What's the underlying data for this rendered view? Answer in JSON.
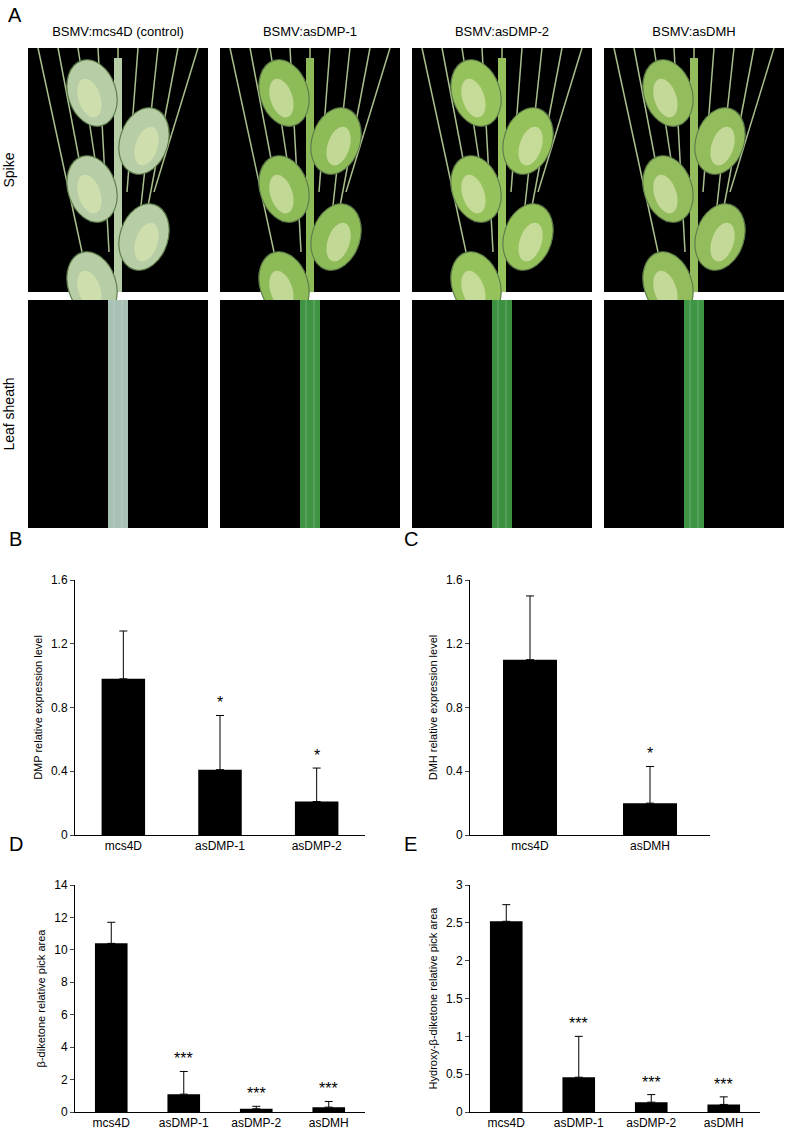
{
  "panel_a": {
    "panel": "A",
    "rows": [
      "Spike",
      "Leaf sheath"
    ],
    "columns": [
      {
        "label": "BSMV:mcs4D (control)",
        "spike_color": "#b7cda6",
        "sheath_color": "#a7c1b5"
      },
      {
        "label": "BSMV:asDMP-1",
        "spike_color": "#8dbb58",
        "sheath_color": "#3f9443"
      },
      {
        "label": "BSMV:asDMP-2",
        "spike_color": "#96c25c",
        "sheath_color": "#3c9140"
      },
      {
        "label": "BSMV:asDMH",
        "spike_color": "#93bd5c",
        "sheath_color": "#3e9544"
      }
    ]
  },
  "chart_data": [
    {
      "panel": "B",
      "type": "bar",
      "ylabel": "DMP relative expression level",
      "categories": [
        "mcs4D",
        "asDMP-1",
        "asDMP-2"
      ],
      "values": [
        0.98,
        0.41,
        0.21
      ],
      "errors": [
        0.3,
        0.34,
        0.21
      ],
      "significance": [
        null,
        "*",
        "*"
      ],
      "color": "#000000",
      "ylim": [
        0,
        1.6
      ],
      "yticks": [
        0,
        0.4,
        0.8,
        1.2,
        1.6
      ],
      "grid": false
    },
    {
      "panel": "C",
      "type": "bar",
      "ylabel": "DMH relative expression level",
      "categories": [
        "mcs4D",
        "asDMH"
      ],
      "values": [
        1.1,
        0.2
      ],
      "errors": [
        0.4,
        0.23
      ],
      "significance": [
        null,
        "*"
      ],
      "color": "#000000",
      "ylim": [
        0,
        1.6
      ],
      "yticks": [
        0,
        0.4,
        0.8,
        1.2,
        1.6
      ],
      "grid": false
    },
    {
      "panel": "D",
      "type": "bar",
      "ylabel": "β-diketone relative pick area",
      "categories": [
        "mcs4D",
        "asDMP-1",
        "asDMP-2",
        "asDMH"
      ],
      "values": [
        10.4,
        1.1,
        0.2,
        0.3
      ],
      "errors": [
        1.3,
        1.4,
        0.15,
        0.35
      ],
      "significance": [
        null,
        "***",
        "***",
        "***"
      ],
      "color": "#000000",
      "ylim": [
        0,
        14
      ],
      "yticks": [
        0,
        2,
        4,
        6,
        8,
        10,
        12,
        14
      ],
      "grid": false
    },
    {
      "panel": "E",
      "type": "bar",
      "ylabel": "Hydroxy-β-diketone relative pick area",
      "categories": [
        "mcs4D",
        "asDMP-1",
        "asDMP-2",
        "asDMH"
      ],
      "values": [
        2.52,
        0.46,
        0.13,
        0.1
      ],
      "errors": [
        0.22,
        0.54,
        0.1,
        0.1
      ],
      "significance": [
        null,
        "***",
        "***",
        "***"
      ],
      "color": "#000000",
      "ylim": [
        0,
        3
      ],
      "yticks": [
        0,
        0.5,
        1,
        1.5,
        2,
        2.5,
        3
      ],
      "grid": false
    }
  ]
}
